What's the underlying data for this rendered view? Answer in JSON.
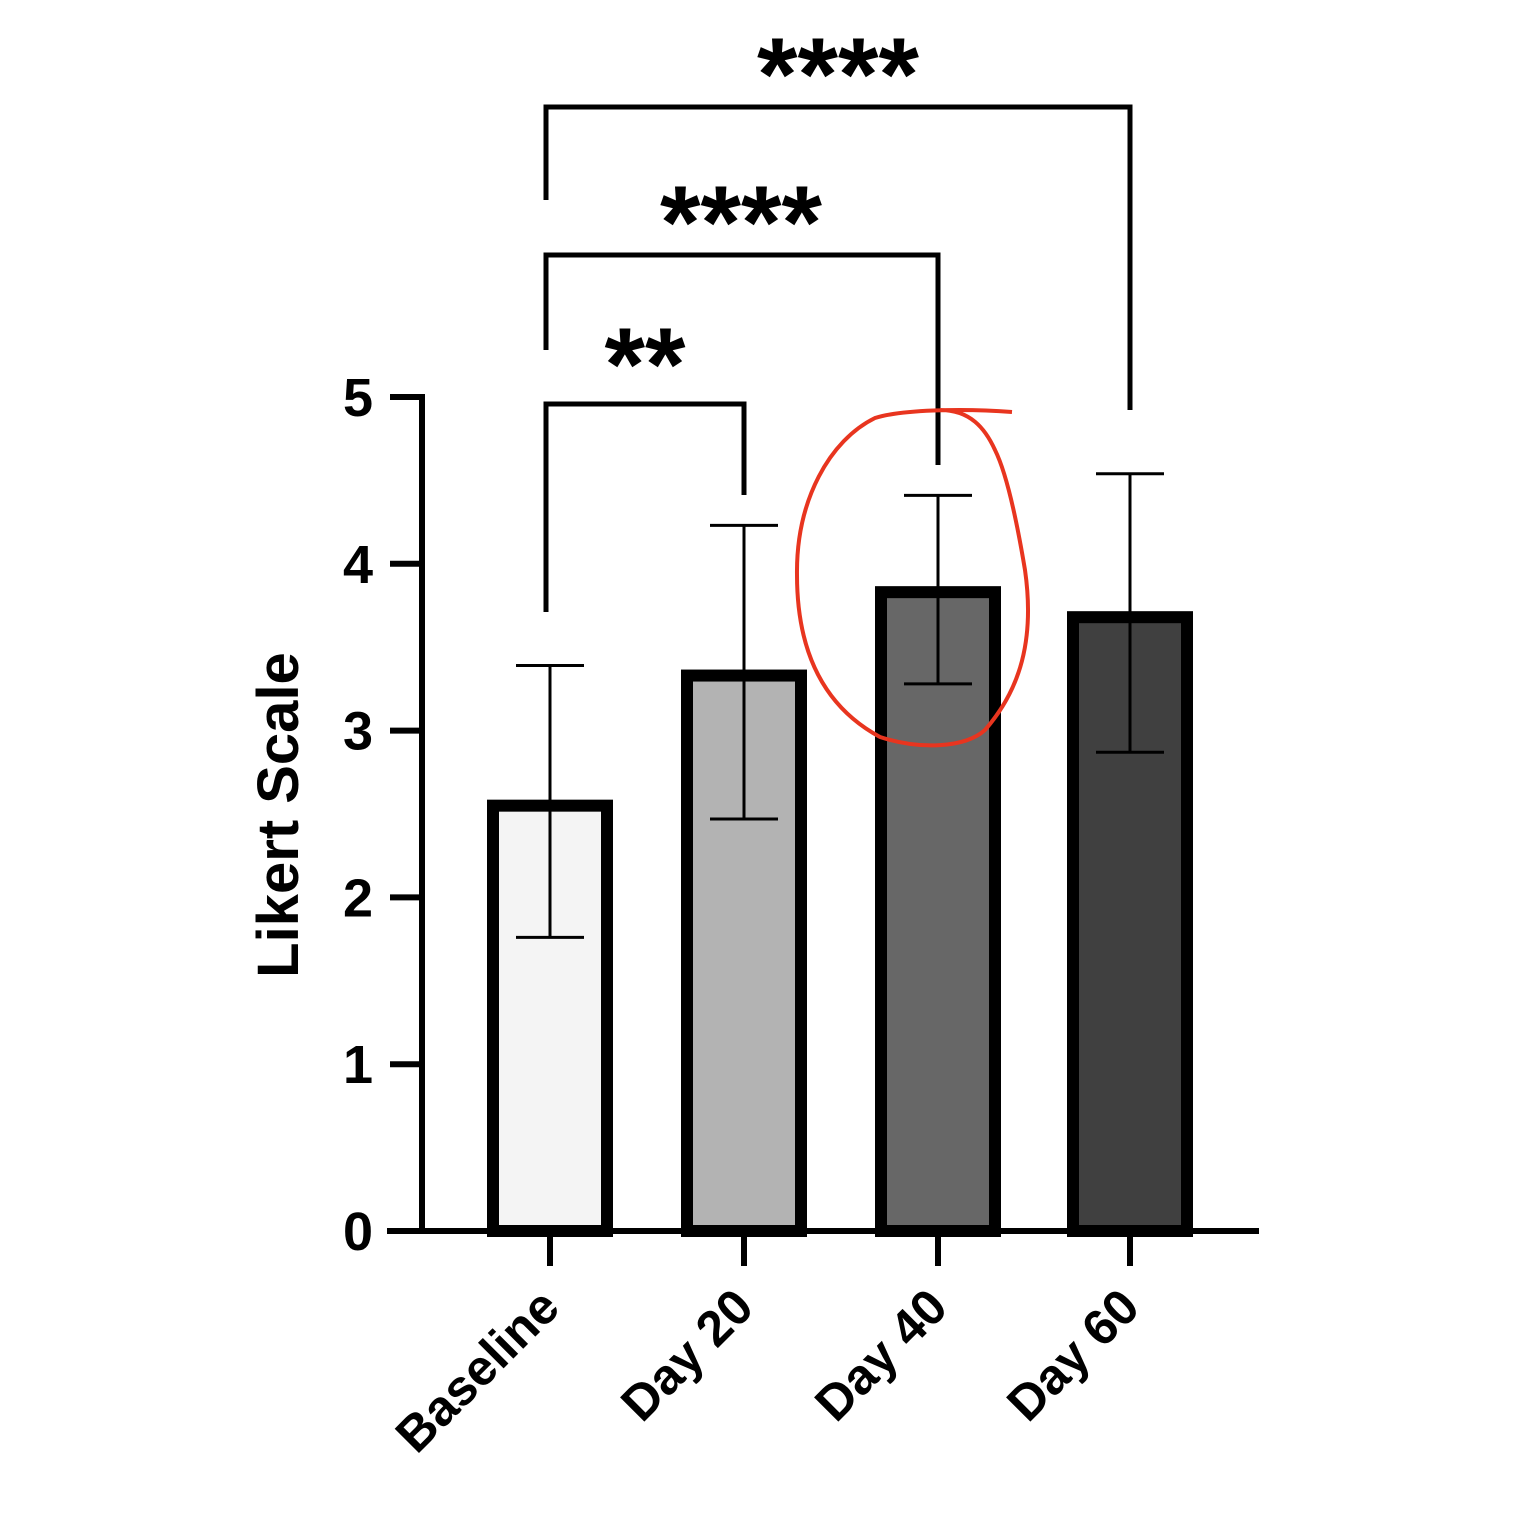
{
  "chart_data": {
    "type": "bar",
    "categories": [
      "Baseline",
      "Day 20",
      "Day 40",
      "Day 60"
    ],
    "values": [
      2.55,
      3.33,
      3.83,
      3.68
    ],
    "error_upper": [
      3.39,
      4.23,
      4.41,
      4.54
    ],
    "error_lower": [
      1.76,
      2.47,
      3.28,
      2.87
    ],
    "bar_colors": [
      "#f4f4f4",
      "#b3b3b3",
      "#676767",
      "#404040"
    ],
    "title": "",
    "xlabel": "",
    "ylabel": "Likert Scale",
    "ylim": [
      0,
      5
    ],
    "yticks": [
      0,
      1,
      2,
      3,
      4,
      5
    ],
    "grid": false,
    "significance": [
      {
        "from": "Baseline",
        "to": "Day 20",
        "label": "**"
      },
      {
        "from": "Baseline",
        "to": "Day 40",
        "label": "****"
      },
      {
        "from": "Baseline",
        "to": "Day 60",
        "label": "****"
      }
    ],
    "annotations": [
      {
        "type": "hand-drawn-circle",
        "target": "Day 40",
        "color": "#e8351f"
      }
    ]
  }
}
